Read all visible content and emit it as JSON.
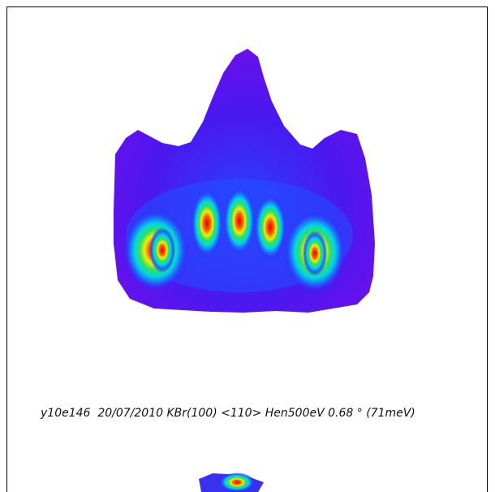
{
  "caption": "y10e146  20/07/2010 KBr(100) <110> Hen500eV 0.68 ° (71meV)"
}
